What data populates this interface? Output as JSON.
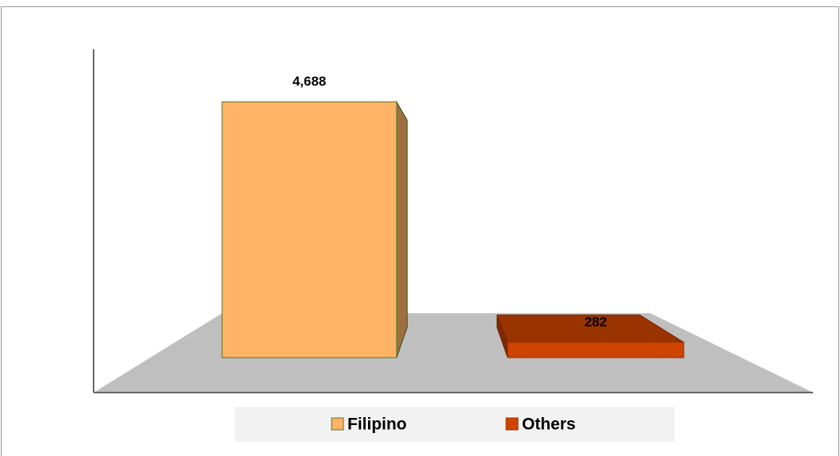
{
  "chart_data": {
    "type": "bar3d",
    "categories": [
      null
    ],
    "series": [
      {
        "name": "Filipino",
        "color": "#ffb366",
        "values": [
          4688
        ],
        "value_labels": [
          "4,688"
        ]
      },
      {
        "name": "Others",
        "color": "#cc4400",
        "values": [
          282
        ],
        "value_labels": [
          "282"
        ]
      }
    ],
    "ylim": [
      0,
      5000
    ],
    "legend": "bottom"
  }
}
